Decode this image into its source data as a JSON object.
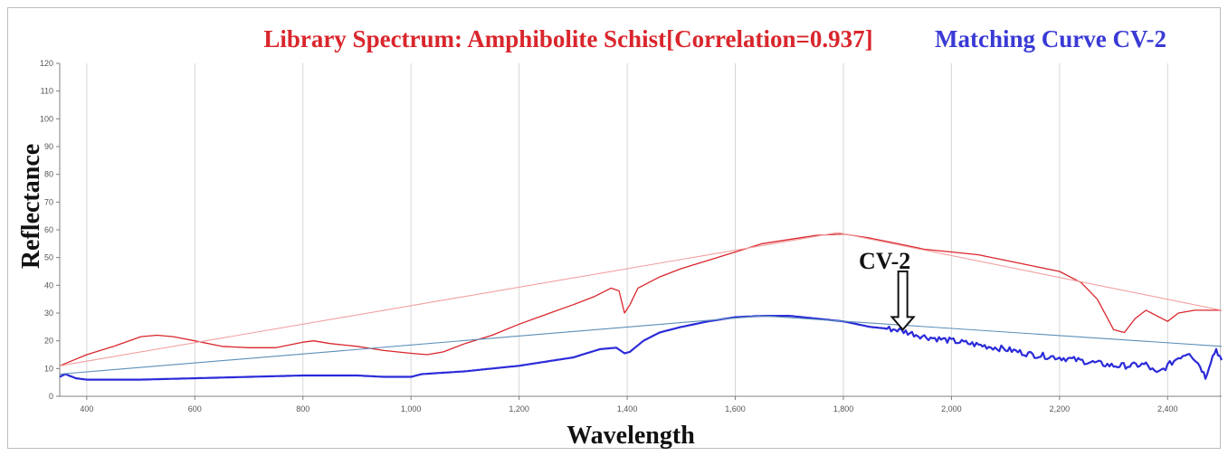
{
  "chart_data": {
    "type": "line",
    "title": "Library Spectrum: Amphibolite Schist[Correlation=0.937]",
    "subtitle": "Matching Curve CV-2",
    "xlabel": "Wavelength",
    "ylabel": "Reflectance",
    "xlim": [
      350,
      2500
    ],
    "ylim": [
      0,
      120
    ],
    "xticks": [
      "400",
      "600",
      "800",
      "1,000",
      "1,200",
      "1,400",
      "1,600",
      "1,800",
      "2,000",
      "2,200",
      "2,400"
    ],
    "yticks": [
      "0",
      "10",
      "20",
      "30",
      "40",
      "50",
      "60",
      "70",
      "80",
      "90",
      "100",
      "110",
      "120"
    ],
    "grid": "vertical",
    "annotation": {
      "text": "CV-2",
      "x": 1910,
      "y": 24
    },
    "colors": {
      "library": "#d9262c",
      "library_hull": "#f2a0a0",
      "matching": "#2b2bd9",
      "matching_hull": "#5c8fb8"
    },
    "series": [
      {
        "values": [
          [
            350,
            11
          ],
          [
            400,
            15
          ],
          [
            450,
            18
          ],
          [
            500,
            21.5
          ],
          [
            530,
            22
          ],
          [
            560,
            21.5
          ],
          [
            600,
            20
          ],
          [
            650,
            18
          ],
          [
            700,
            17.5
          ],
          [
            750,
            17.5
          ],
          [
            800,
            19.5
          ],
          [
            820,
            20
          ],
          [
            850,
            19
          ],
          [
            900,
            18
          ],
          [
            950,
            16.5
          ],
          [
            1000,
            15.5
          ],
          [
            1030,
            15
          ],
          [
            1060,
            16
          ],
          [
            1100,
            19
          ],
          [
            1150,
            22
          ],
          [
            1200,
            26
          ],
          [
            1250,
            29.5
          ],
          [
            1300,
            33
          ],
          [
            1340,
            36
          ],
          [
            1370,
            39
          ],
          [
            1385,
            38
          ],
          [
            1395,
            30
          ],
          [
            1405,
            33
          ],
          [
            1420,
            39
          ],
          [
            1460,
            43
          ],
          [
            1500,
            46
          ],
          [
            1550,
            49
          ],
          [
            1600,
            52
          ],
          [
            1650,
            55
          ],
          [
            1700,
            56.5
          ],
          [
            1750,
            58
          ],
          [
            1800,
            58.5
          ],
          [
            1850,
            57
          ],
          [
            1900,
            55
          ],
          [
            1950,
            53
          ],
          [
            2000,
            52
          ],
          [
            2050,
            51
          ],
          [
            2100,
            49
          ],
          [
            2150,
            47
          ],
          [
            2200,
            45
          ],
          [
            2240,
            41
          ],
          [
            2270,
            35
          ],
          [
            2300,
            24
          ],
          [
            2320,
            23
          ],
          [
            2340,
            28
          ],
          [
            2360,
            31
          ],
          [
            2380,
            29
          ],
          [
            2400,
            27
          ],
          [
            2420,
            30
          ],
          [
            2450,
            31
          ],
          [
            2500,
            31
          ]
        ]
      },
      {
        "values": [
          [
            350,
            11
          ],
          [
            1790,
            59
          ],
          [
            2500,
            31
          ]
        ]
      },
      {
        "values": [
          [
            350,
            7
          ],
          [
            360,
            8
          ],
          [
            380,
            6.5
          ],
          [
            400,
            6
          ],
          [
            500,
            6
          ],
          [
            600,
            6.5
          ],
          [
            700,
            7
          ],
          [
            800,
            7.5
          ],
          [
            900,
            7.5
          ],
          [
            950,
            7
          ],
          [
            1000,
            7
          ],
          [
            1020,
            8
          ],
          [
            1100,
            9
          ],
          [
            1200,
            11
          ],
          [
            1300,
            14
          ],
          [
            1350,
            17
          ],
          [
            1380,
            17.5
          ],
          [
            1395,
            15.5
          ],
          [
            1405,
            16
          ],
          [
            1430,
            20
          ],
          [
            1460,
            23
          ],
          [
            1500,
            25
          ],
          [
            1550,
            27
          ],
          [
            1600,
            28.5
          ],
          [
            1650,
            29
          ],
          [
            1700,
            29
          ],
          [
            1750,
            28
          ],
          [
            1800,
            27
          ],
          [
            1850,
            25
          ],
          [
            1900,
            24
          ],
          [
            1950,
            21.5
          ],
          [
            2000,
            20
          ],
          [
            2050,
            18.5
          ],
          [
            2100,
            17
          ],
          [
            2150,
            15
          ],
          [
            2200,
            14
          ],
          [
            2250,
            12.5
          ],
          [
            2300,
            11
          ],
          [
            2330,
            11
          ],
          [
            2360,
            11.5
          ],
          [
            2380,
            8
          ],
          [
            2400,
            11
          ],
          [
            2420,
            14
          ],
          [
            2440,
            16
          ],
          [
            2460,
            11
          ],
          [
            2470,
            7
          ],
          [
            2480,
            13
          ],
          [
            2490,
            17
          ],
          [
            2500,
            13
          ]
        ]
      },
      {
        "values": [
          [
            350,
            8
          ],
          [
            1650,
            29
          ],
          [
            2500,
            18
          ]
        ]
      }
    ]
  }
}
